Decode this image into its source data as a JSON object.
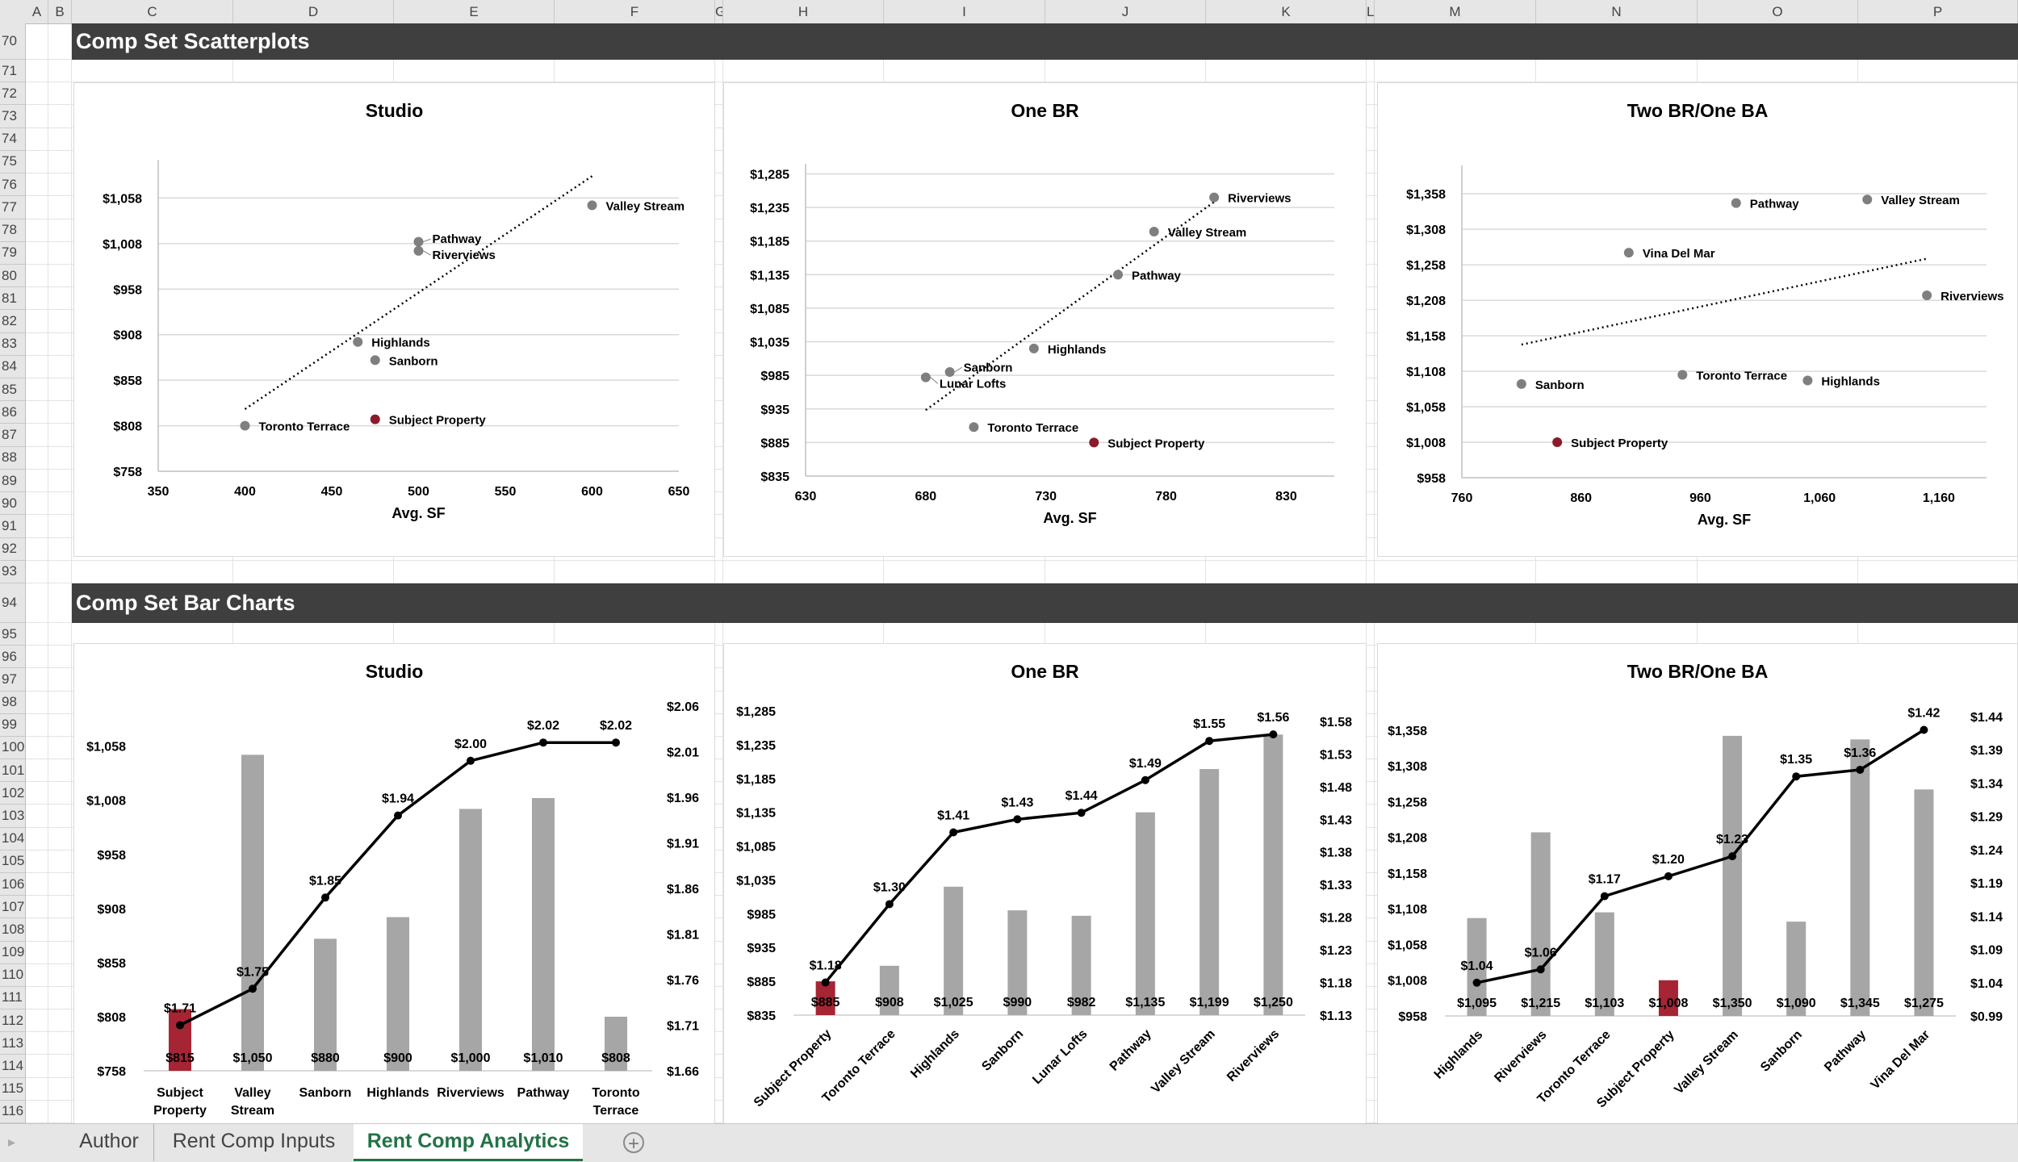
{
  "columns": [
    "A",
    "B",
    "C",
    "D",
    "E",
    "F",
    "G",
    "H",
    "I",
    "J",
    "K",
    "L",
    "M",
    "N",
    "O",
    "P"
  ],
  "rows": [
    70,
    71,
    72,
    73,
    74,
    75,
    76,
    77,
    78,
    79,
    80,
    81,
    82,
    83,
    84,
    85,
    86,
    87,
    88,
    89,
    90,
    91,
    92,
    93,
    94,
    95,
    96,
    97,
    98,
    99,
    100,
    101,
    102,
    103,
    104,
    105,
    106,
    107,
    108,
    109,
    110,
    111,
    112,
    113,
    114,
    115,
    116
  ],
  "sections": {
    "scatter_title": "Comp Set Scatterplots",
    "bar_title": "Comp Set Bar Charts"
  },
  "sheet_tabs": [
    {
      "label": "Author",
      "active": false
    },
    {
      "label": "Rent Comp Inputs",
      "active": false
    },
    {
      "label": "Rent Comp Analytics",
      "active": true
    }
  ],
  "icons": {
    "add_sheet": "plus-circle-icon",
    "scroll_left": "triangle-left-icon"
  },
  "add_sheet_glyph": "+",
  "colors": {
    "section_band": "#3f3f3f",
    "comp_point": "#7f7f7f",
    "subject_point": "#8b1a2b",
    "comp_bar": "#a6a6a6",
    "subject_bar": "#a52535",
    "line": "#000000",
    "active_tab": "#217346"
  },
  "chart_data": [
    {
      "type": "scatter",
      "title": "Studio",
      "xlabel": "Avg. SF",
      "ylabel": "",
      "xlim": [
        350,
        650
      ],
      "ylim": [
        758,
        1100
      ],
      "xticks": [
        "350",
        "400",
        "450",
        "500",
        "550",
        "600",
        "650"
      ],
      "yticks": [
        "$758",
        "$808",
        "$858",
        "$908",
        "$958",
        "$1,008",
        "$1,058"
      ],
      "grid": true,
      "trendline": "linear, dotted",
      "points": [
        {
          "label": "Valley Stream",
          "x": 600,
          "y": 1050
        },
        {
          "label": "Pathway",
          "x": 500,
          "y": 1010
        },
        {
          "label": "Riverviews",
          "x": 500,
          "y": 1000
        },
        {
          "label": "Highlands",
          "x": 465,
          "y": 900
        },
        {
          "label": "Sanborn",
          "x": 475,
          "y": 880
        },
        {
          "label": "Toronto Terrace",
          "x": 400,
          "y": 808
        },
        {
          "label": "Subject Property",
          "x": 475,
          "y": 815,
          "subject": true
        }
      ]
    },
    {
      "type": "scatter",
      "title": "One BR",
      "xlabel": "Avg. SF",
      "ylabel": "",
      "xlim": [
        630,
        850
      ],
      "ylim": [
        835,
        1300
      ],
      "xticks": [
        "630",
        "680",
        "730",
        "780",
        "830"
      ],
      "yticks": [
        "$835",
        "$885",
        "$935",
        "$985",
        "$1,035",
        "$1,085",
        "$1,135",
        "$1,185",
        "$1,235",
        "$1,285"
      ],
      "grid": true,
      "trendline": "linear, dotted",
      "points": [
        {
          "label": "Riverviews",
          "x": 800,
          "y": 1250
        },
        {
          "label": "Valley Stream",
          "x": 775,
          "y": 1199
        },
        {
          "label": "Pathway",
          "x": 760,
          "y": 1135
        },
        {
          "label": "Highlands",
          "x": 725,
          "y": 1025
        },
        {
          "label": "Sanborn",
          "x": 690,
          "y": 990
        },
        {
          "label": "Lunar Lofts",
          "x": 680,
          "y": 982
        },
        {
          "label": "Toronto Terrace",
          "x": 700,
          "y": 908
        },
        {
          "label": "Subject Property",
          "x": 750,
          "y": 885,
          "subject": true
        }
      ]
    },
    {
      "type": "scatter",
      "title": "Two BR/One BA",
      "xlabel": "Avg. SF",
      "ylabel": "",
      "xlim": [
        760,
        1200
      ],
      "ylim": [
        958,
        1398
      ],
      "xticks": [
        "760",
        "860",
        "960",
        "1,060",
        "1,160"
      ],
      "yticks": [
        "$958",
        "$1,008",
        "$1,058",
        "$1,108",
        "$1,158",
        "$1,208",
        "$1,258",
        "$1,308",
        "$1,358"
      ],
      "grid": true,
      "trendline": "linear, dotted",
      "points": [
        {
          "label": "Pathway",
          "x": 990,
          "y": 1345
        },
        {
          "label": "Valley Stream",
          "x": 1100,
          "y": 1350
        },
        {
          "label": "Vina Del Mar",
          "x": 900,
          "y": 1275
        },
        {
          "label": "Riverviews",
          "x": 1150,
          "y": 1215
        },
        {
          "label": "Sanborn",
          "x": 810,
          "y": 1090
        },
        {
          "label": "Toronto Terrace",
          "x": 945,
          "y": 1103
        },
        {
          "label": "Highlands",
          "x": 1050,
          "y": 1095
        },
        {
          "label": "Subject Property",
          "x": 840,
          "y": 1008,
          "subject": true
        }
      ]
    },
    {
      "type": "bar+line",
      "title": "Studio",
      "categories": [
        "Subject Property",
        "Valley Stream",
        "Sanborn",
        "Highlands",
        "Riverviews",
        "Pathway",
        "Toronto Terrace"
      ],
      "bar_values": [
        815,
        1050,
        880,
        900,
        1000,
        1010,
        808
      ],
      "bar_labels": [
        "$815",
        "$1,050",
        "$880",
        "$900",
        "$1,000",
        "$1,010",
        "$808"
      ],
      "line_values": [
        1.71,
        1.75,
        1.85,
        1.94,
        2.0,
        2.02,
        2.02
      ],
      "line_labels": [
        "$1.71",
        "$1.75",
        "$1.85",
        "$1.94",
        "$2.00",
        "$2.02",
        "$2.02"
      ],
      "left_ylim": [
        758,
        1095
      ],
      "right_ylim": [
        1.66,
        2.06
      ],
      "left_ticks": [
        "$758",
        "$808",
        "$858",
        "$908",
        "$958",
        "$1,008",
        "$1,058"
      ],
      "right_ticks": [
        "$1.66",
        "$1.71",
        "$1.76",
        "$1.81",
        "$1.86",
        "$1.91",
        "$1.96",
        "$2.01",
        "$2.06"
      ],
      "highlight": "Subject Property",
      "label_rotation": 0
    },
    {
      "type": "bar+line",
      "title": "One BR",
      "categories": [
        "Subject Property",
        "Toronto Terrace",
        "Highlands",
        "Sanborn",
        "Lunar Lofts",
        "Pathway",
        "Valley Stream",
        "Riverviews"
      ],
      "bar_values": [
        885,
        908,
        1025,
        990,
        982,
        1135,
        1199,
        1250
      ],
      "bar_labels": [
        "$885",
        "$908",
        "$1,025",
        "$990",
        "$982",
        "$1,135",
        "$1,199",
        "$1,250"
      ],
      "line_values": [
        1.18,
        1.3,
        1.41,
        1.43,
        1.44,
        1.49,
        1.55,
        1.56
      ],
      "line_labels": [
        "$1.18",
        "$1.30",
        "$1.41",
        "$1.43",
        "$1.44",
        "$1.49",
        "$1.55",
        "$1.56"
      ],
      "left_ylim": [
        835,
        1285
      ],
      "right_ylim": [
        1.13,
        1.596
      ],
      "left_ticks": [
        "$835",
        "$885",
        "$935",
        "$985",
        "$1,035",
        "$1,085",
        "$1,135",
        "$1,185",
        "$1,235",
        "$1,285"
      ],
      "right_ticks": [
        "$1.13",
        "$1.18",
        "$1.23",
        "$1.28",
        "$1.33",
        "$1.38",
        "$1.43",
        "$1.48",
        "$1.53",
        "$1.58"
      ],
      "highlight": "Subject Property",
      "label_rotation": -45
    },
    {
      "type": "bar+line",
      "title": "Two BR/One BA",
      "categories": [
        "Highlands",
        "Riverviews",
        "Toronto Terrace",
        "Subject Property",
        "Valley Stream",
        "Sanborn",
        "Pathway",
        "Vina Del Mar"
      ],
      "bar_values": [
        1095,
        1215,
        1103,
        1008,
        1350,
        1090,
        1345,
        1275
      ],
      "bar_labels": [
        "$1,095",
        "$1,215",
        "$1,103",
        "$1,008",
        "$1,350",
        "$1,090",
        "$1,345",
        "$1,275"
      ],
      "line_values": [
        1.04,
        1.06,
        1.17,
        1.2,
        1.23,
        1.35,
        1.36,
        1.42
      ],
      "line_labels": [
        "$1.04",
        "$1.06",
        "$1.17",
        "$1.20",
        "$1.23",
        "$1.35",
        "$1.36",
        "$1.42"
      ],
      "left_ylim": [
        958,
        1377
      ],
      "right_ylim": [
        0.99,
        1.44
      ],
      "left_ticks": [
        "$958",
        "$1,008",
        "$1,058",
        "$1,108",
        "$1,158",
        "$1,208",
        "$1,258",
        "$1,308",
        "$1,358"
      ],
      "right_ticks": [
        "$0.99",
        "$1.04",
        "$1.09",
        "$1.14",
        "$1.19",
        "$1.24",
        "$1.29",
        "$1.34",
        "$1.39",
        "$1.44"
      ],
      "highlight": "Subject Property",
      "label_rotation": -45
    }
  ]
}
